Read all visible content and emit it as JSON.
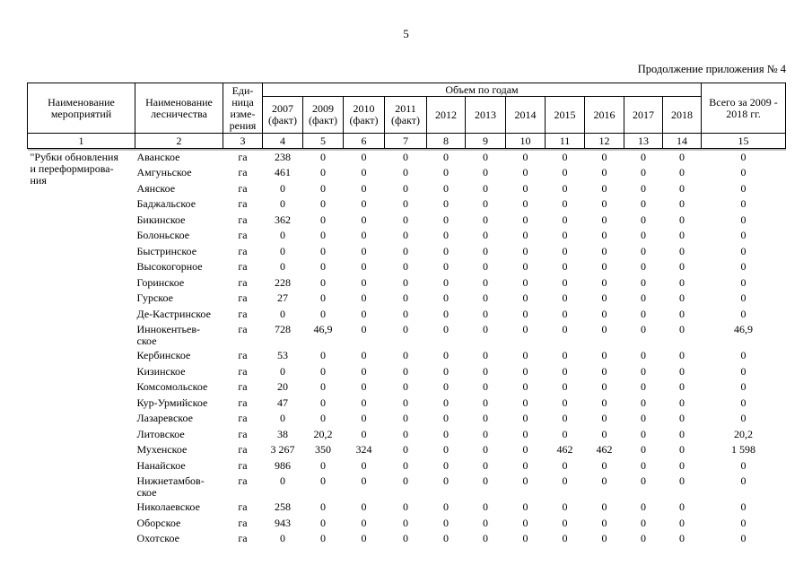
{
  "page": {
    "number": "5",
    "continuation": "Продолжение приложения № 4"
  },
  "table": {
    "headers": {
      "activity": "Наименование\nмероприятий",
      "forestry": "Наименование\nлесничества",
      "unit": "Еди-\nница\nизме-\nрения",
      "volume_group": "Объем по годам",
      "years": [
        "2007\n(факт)",
        "2009\n(факт)",
        "2010\n(факт)",
        "2011\n(факт)",
        "2012",
        "2013",
        "2014",
        "2015",
        "2016",
        "2017",
        "2018"
      ],
      "total": "Всего за 2009 -\n2018 гг."
    },
    "column_numbers": [
      "1",
      "2",
      "3",
      "4",
      "5",
      "6",
      "7",
      "8",
      "9",
      "10",
      "11",
      "12",
      "13",
      "14",
      "15"
    ],
    "activity_name": "\"Рубки обновления\nи переформирова-\nния",
    "rows": [
      {
        "name": "Аванское",
        "unit": "га",
        "values": [
          "238",
          "0",
          "0",
          "0",
          "0",
          "0",
          "0",
          "0",
          "0",
          "0",
          "0"
        ],
        "total": "0"
      },
      {
        "name": "Амгуньское",
        "unit": "га",
        "values": [
          "461",
          "0",
          "0",
          "0",
          "0",
          "0",
          "0",
          "0",
          "0",
          "0",
          "0"
        ],
        "total": "0"
      },
      {
        "name": "Аянское",
        "unit": "га",
        "values": [
          "0",
          "0",
          "0",
          "0",
          "0",
          "0",
          "0",
          "0",
          "0",
          "0",
          "0"
        ],
        "total": "0"
      },
      {
        "name": "Баджальское",
        "unit": "га",
        "values": [
          "0",
          "0",
          "0",
          "0",
          "0",
          "0",
          "0",
          "0",
          "0",
          "0",
          "0"
        ],
        "total": "0"
      },
      {
        "name": "Бикинское",
        "unit": "га",
        "values": [
          "362",
          "0",
          "0",
          "0",
          "0",
          "0",
          "0",
          "0",
          "0",
          "0",
          "0"
        ],
        "total": "0"
      },
      {
        "name": "Болоньское",
        "unit": "га",
        "values": [
          "0",
          "0",
          "0",
          "0",
          "0",
          "0",
          "0",
          "0",
          "0",
          "0",
          "0"
        ],
        "total": "0"
      },
      {
        "name": "Быстринское",
        "unit": "га",
        "values": [
          "0",
          "0",
          "0",
          "0",
          "0",
          "0",
          "0",
          "0",
          "0",
          "0",
          "0"
        ],
        "total": "0"
      },
      {
        "name": "Высокогорное",
        "unit": "га",
        "values": [
          "0",
          "0",
          "0",
          "0",
          "0",
          "0",
          "0",
          "0",
          "0",
          "0",
          "0"
        ],
        "total": "0"
      },
      {
        "name": "Горинское",
        "unit": "га",
        "values": [
          "228",
          "0",
          "0",
          "0",
          "0",
          "0",
          "0",
          "0",
          "0",
          "0",
          "0"
        ],
        "total": "0"
      },
      {
        "name": "Гурское",
        "unit": "га",
        "values": [
          "27",
          "0",
          "0",
          "0",
          "0",
          "0",
          "0",
          "0",
          "0",
          "0",
          "0"
        ],
        "total": "0"
      },
      {
        "name": "Де-Кастринское",
        "unit": "га",
        "values": [
          "0",
          "0",
          "0",
          "0",
          "0",
          "0",
          "0",
          "0",
          "0",
          "0",
          "0"
        ],
        "total": "0"
      },
      {
        "name": "Иннокентьев-\nское",
        "unit": "га",
        "values": [
          "728",
          "46,9",
          "0",
          "0",
          "0",
          "0",
          "0",
          "0",
          "0",
          "0",
          "0"
        ],
        "total": "46,9"
      },
      {
        "name": "Кербинское",
        "unit": "га",
        "values": [
          "53",
          "0",
          "0",
          "0",
          "0",
          "0",
          "0",
          "0",
          "0",
          "0",
          "0"
        ],
        "total": "0"
      },
      {
        "name": "Кизинское",
        "unit": "га",
        "values": [
          "0",
          "0",
          "0",
          "0",
          "0",
          "0",
          "0",
          "0",
          "0",
          "0",
          "0"
        ],
        "total": "0"
      },
      {
        "name": "Комсомольское",
        "unit": "га",
        "values": [
          "20",
          "0",
          "0",
          "0",
          "0",
          "0",
          "0",
          "0",
          "0",
          "0",
          "0"
        ],
        "total": "0"
      },
      {
        "name": "Кур-Урмийское",
        "unit": "га",
        "values": [
          "47",
          "0",
          "0",
          "0",
          "0",
          "0",
          "0",
          "0",
          "0",
          "0",
          "0"
        ],
        "total": "0"
      },
      {
        "name": "Лазаревское",
        "unit": "га",
        "values": [
          "0",
          "0",
          "0",
          "0",
          "0",
          "0",
          "0",
          "0",
          "0",
          "0",
          "0"
        ],
        "total": "0"
      },
      {
        "name": "Литовское",
        "unit": "га",
        "values": [
          "38",
          "20,2",
          "0",
          "0",
          "0",
          "0",
          "0",
          "0",
          "0",
          "0",
          "0"
        ],
        "total": "20,2"
      },
      {
        "name": "Мухенское",
        "unit": "га",
        "values": [
          "3 267",
          "350",
          "324",
          "0",
          "0",
          "0",
          "0",
          "462",
          "462",
          "0",
          "0"
        ],
        "total": "1 598"
      },
      {
        "name": "Нанайское",
        "unit": "га",
        "values": [
          "986",
          "0",
          "0",
          "0",
          "0",
          "0",
          "0",
          "0",
          "0",
          "0",
          "0"
        ],
        "total": "0"
      },
      {
        "name": "Нижнетамбов-\nское",
        "unit": "га",
        "values": [
          "0",
          "0",
          "0",
          "0",
          "0",
          "0",
          "0",
          "0",
          "0",
          "0",
          "0"
        ],
        "total": "0"
      },
      {
        "name": "Николаевское",
        "unit": "га",
        "values": [
          "258",
          "0",
          "0",
          "0",
          "0",
          "0",
          "0",
          "0",
          "0",
          "0",
          "0"
        ],
        "total": "0"
      },
      {
        "name": "Оборское",
        "unit": "га",
        "values": [
          "943",
          "0",
          "0",
          "0",
          "0",
          "0",
          "0",
          "0",
          "0",
          "0",
          "0"
        ],
        "total": "0"
      },
      {
        "name": "Охотское",
        "unit": "га",
        "values": [
          "0",
          "0",
          "0",
          "0",
          "0",
          "0",
          "0",
          "0",
          "0",
          "0",
          "0"
        ],
        "total": "0"
      }
    ]
  }
}
